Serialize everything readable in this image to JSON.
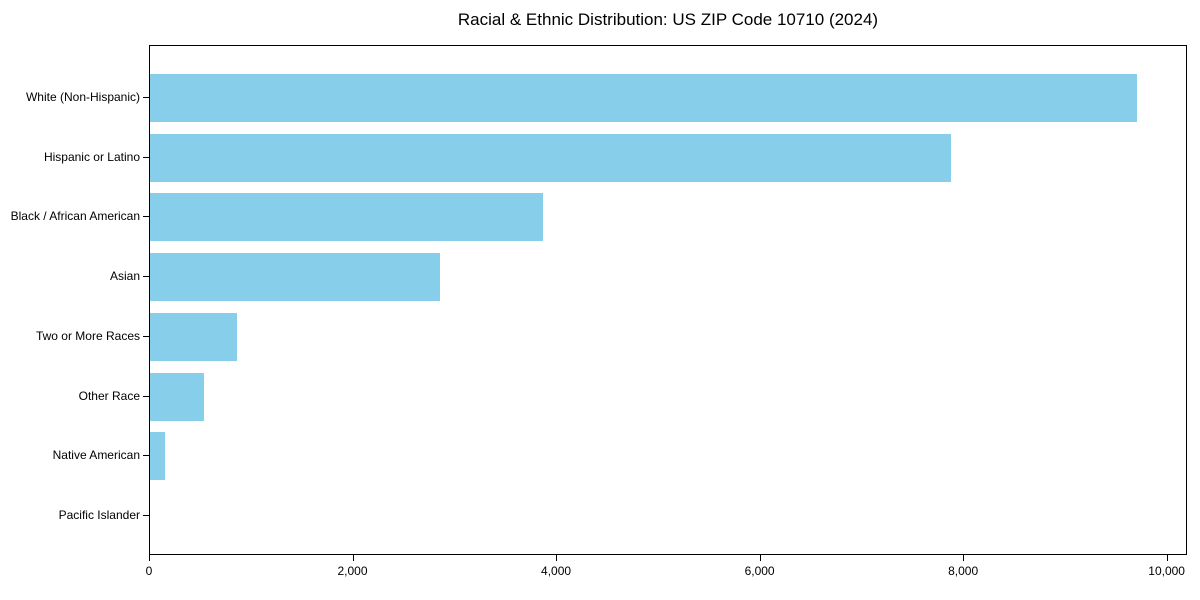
{
  "chart_data": {
    "type": "bar",
    "orientation": "horizontal",
    "title": "Racial & Ethnic Distribution: US ZIP Code 10710 (2024)",
    "categories": [
      "White (Non-Hispanic)",
      "Hispanic or Latino",
      "Black / African American",
      "Asian",
      "Two or More Races",
      "Other Race",
      "Native American",
      "Pacific Islander"
    ],
    "values": [
      9700,
      7870,
      3860,
      2850,
      855,
      530,
      150,
      0
    ],
    "xlabel": "",
    "ylabel": "",
    "xlim": [
      0,
      10200
    ],
    "x_ticks": [
      0,
      2000,
      4000,
      6000,
      8000,
      10000
    ],
    "x_tick_labels": [
      "0",
      "2,000",
      "4,000",
      "6,000",
      "8,000",
      "10,000"
    ],
    "bar_color": "#87CEEB",
    "grid": false,
    "legend_position": "none"
  }
}
